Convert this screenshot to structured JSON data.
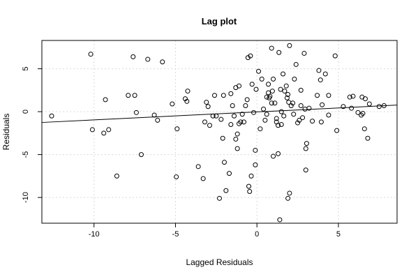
{
  "chart_data": {
    "type": "scatter",
    "title": "Lag plot",
    "xlabel": "Lagged Residuals",
    "ylabel": "Residuals",
    "xlim": [
      -13.2,
      8.6
    ],
    "ylim": [
      -13.0,
      8.3
    ],
    "xticks": [
      -10,
      -5,
      0,
      5
    ],
    "yticks": [
      -10,
      -5,
      0,
      5
    ],
    "xtick_labels": [
      "-10",
      "-5",
      "0",
      "5"
    ],
    "ytick_labels": [
      "-10",
      "-5",
      "0",
      "5"
    ],
    "grid": true,
    "fit_line": {
      "intercept": -0.03,
      "slope": 0.093
    },
    "points": [
      [
        -12.6,
        -0.5
      ],
      [
        -10.2,
        6.7
      ],
      [
        -10.1,
        -2.1
      ],
      [
        -9.4,
        -2.5
      ],
      [
        -9.3,
        1.4
      ],
      [
        -9.1,
        -2.1
      ],
      [
        -8.6,
        -7.5
      ],
      [
        -7.9,
        1.9
      ],
      [
        -7.6,
        6.4
      ],
      [
        -7.5,
        1.9
      ],
      [
        -7.4,
        -0.1
      ],
      [
        -7.1,
        -5.0
      ],
      [
        -6.7,
        6.1
      ],
      [
        -6.3,
        -0.4
      ],
      [
        -6.1,
        -1.0
      ],
      [
        -5.8,
        5.8
      ],
      [
        -5.2,
        0.9
      ],
      [
        -4.95,
        -7.6
      ],
      [
        -4.9,
        -2.0
      ],
      [
        -4.4,
        1.5
      ],
      [
        -4.3,
        1.2
      ],
      [
        -4.25,
        2.4
      ],
      [
        -3.6,
        -6.4
      ],
      [
        -3.3,
        -7.8
      ],
      [
        -3.2,
        -1.2
      ],
      [
        -3.1,
        1.1
      ],
      [
        -3.0,
        0.6
      ],
      [
        -2.9,
        -1.6
      ],
      [
        -2.7,
        -0.5
      ],
      [
        -2.6,
        1.9
      ],
      [
        -2.5,
        -0.5
      ],
      [
        -2.3,
        -10.1
      ],
      [
        -2.2,
        -0.9
      ],
      [
        -2.1,
        -3.1
      ],
      [
        -2.0,
        -5.9
      ],
      [
        -2.05,
        1.9
      ],
      [
        -1.9,
        -9.2
      ],
      [
        -1.7,
        -7.2
      ],
      [
        -1.6,
        -1.5
      ],
      [
        -1.6,
        2.1
      ],
      [
        -1.5,
        0.7
      ],
      [
        -1.4,
        -0.5
      ],
      [
        -1.3,
        -3.2
      ],
      [
        -1.3,
        2.8
      ],
      [
        -1.2,
        -2.6
      ],
      [
        -1.2,
        -4.3
      ],
      [
        -1.1,
        -1.4
      ],
      [
        -1.1,
        3.0
      ],
      [
        -1.0,
        -1.2
      ],
      [
        -0.9,
        -0.3
      ],
      [
        -0.8,
        -1.2
      ],
      [
        -0.7,
        0.7
      ],
      [
        -0.6,
        1.4
      ],
      [
        -0.55,
        6.3
      ],
      [
        -0.5,
        -8.7
      ],
      [
        -0.45,
        -9.3
      ],
      [
        -0.4,
        6.5
      ],
      [
        -0.35,
        -7.5
      ],
      [
        -0.3,
        3.2
      ],
      [
        -0.2,
        -0.1
      ],
      [
        -0.1,
        -6.2
      ],
      [
        -0.1,
        -4.5
      ],
      [
        -0.05,
        2.6
      ],
      [
        0.1,
        4.7
      ],
      [
        0.2,
        -2.0
      ],
      [
        0.3,
        3.8
      ],
      [
        0.4,
        0.3
      ],
      [
        0.5,
        -1.0
      ],
      [
        0.6,
        -0.3
      ],
      [
        0.6,
        1.7
      ],
      [
        0.7,
        3.2
      ],
      [
        0.7,
        2.2
      ],
      [
        0.75,
        1.6
      ],
      [
        0.8,
        1.8
      ],
      [
        0.9,
        1.0
      ],
      [
        0.95,
        2.4
      ],
      [
        0.9,
        7.4
      ],
      [
        1.0,
        -5.2
      ],
      [
        1.0,
        3.8
      ],
      [
        1.1,
        1.0
      ],
      [
        1.2,
        -1.2
      ],
      [
        1.2,
        -0.8
      ],
      [
        1.3,
        -4.9
      ],
      [
        1.3,
        -1.6
      ],
      [
        1.35,
        6.9
      ],
      [
        1.4,
        -12.6
      ],
      [
        1.45,
        2.6
      ],
      [
        1.5,
        -1.5
      ],
      [
        1.5,
        0.0
      ],
      [
        1.6,
        4.4
      ],
      [
        1.65,
        -0.5
      ],
      [
        1.7,
        2.4
      ],
      [
        1.8,
        3.0
      ],
      [
        1.85,
        1.6
      ],
      [
        1.9,
        2.0
      ],
      [
        1.95,
        1.1
      ],
      [
        1.9,
        -10.1
      ],
      [
        2.0,
        -9.5
      ],
      [
        2.0,
        7.7
      ],
      [
        2.1,
        0.7
      ],
      [
        2.2,
        1.0
      ],
      [
        2.25,
        -0.3
      ],
      [
        2.3,
        3.8
      ],
      [
        2.4,
        5.5
      ],
      [
        2.5,
        -1.3
      ],
      [
        2.6,
        -1.0
      ],
      [
        2.7,
        2.5
      ],
      [
        2.7,
        0.7
      ],
      [
        2.8,
        -0.7
      ],
      [
        2.9,
        6.8
      ],
      [
        2.95,
        0.3
      ],
      [
        3.0,
        -4.3
      ],
      [
        3.05,
        -3.7
      ],
      [
        3.0,
        -6.8
      ],
      [
        3.2,
        0.4
      ],
      [
        3.4,
        -1.1
      ],
      [
        3.7,
        1.9
      ],
      [
        3.8,
        4.8
      ],
      [
        3.9,
        3.7
      ],
      [
        3.95,
        -1.2
      ],
      [
        4.0,
        0.8
      ],
      [
        4.2,
        4.4
      ],
      [
        4.4,
        1.9
      ],
      [
        4.4,
        -0.4
      ],
      [
        4.8,
        6.5
      ],
      [
        4.9,
        -2.2
      ],
      [
        5.3,
        0.6
      ],
      [
        5.7,
        1.7
      ],
      [
        5.8,
        0.4
      ],
      [
        5.9,
        1.8
      ],
      [
        6.2,
        -0.1
      ],
      [
        6.4,
        -0.4
      ],
      [
        6.45,
        1.7
      ],
      [
        6.5,
        -0.2
      ],
      [
        6.6,
        -2.0
      ],
      [
        6.65,
        1.5
      ],
      [
        6.8,
        -3.1
      ],
      [
        6.9,
        0.9
      ],
      [
        7.5,
        0.6
      ],
      [
        7.8,
        0.7
      ]
    ]
  }
}
